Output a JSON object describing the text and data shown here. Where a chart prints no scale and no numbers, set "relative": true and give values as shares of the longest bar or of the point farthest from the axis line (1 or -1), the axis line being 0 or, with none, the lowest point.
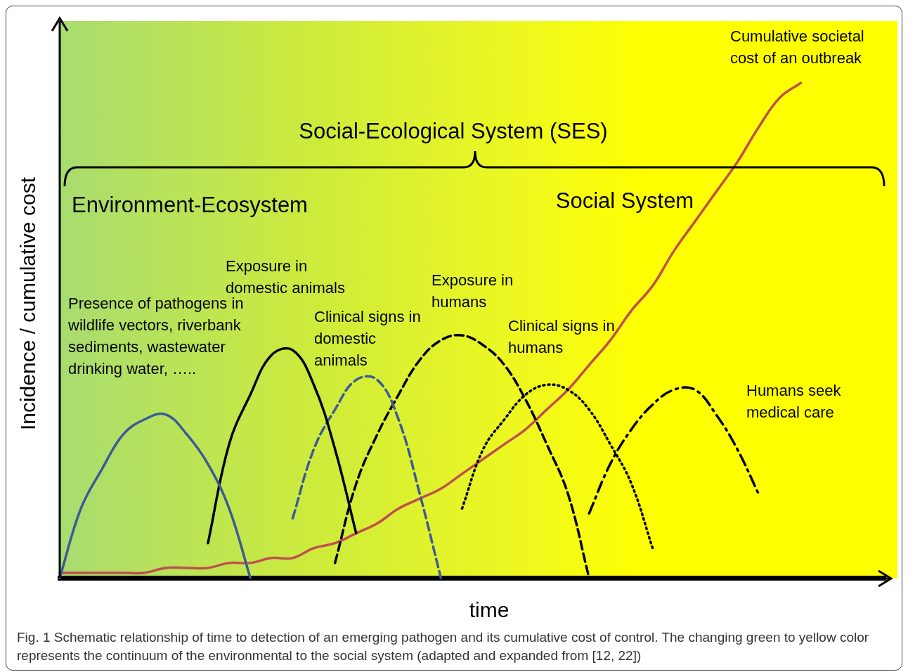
{
  "chart_data": {
    "type": "line",
    "relative": true,
    "xlabel": "time",
    "ylabel": "Incidence / cumulative cost",
    "grid": false,
    "legend": false,
    "categories": [
      null,
      null,
      null,
      null,
      null,
      null,
      null,
      null,
      null,
      null,
      null,
      null,
      null,
      null,
      null,
      null,
      null,
      null,
      null,
      null,
      null,
      null,
      null,
      null,
      null,
      null,
      null,
      null,
      null,
      null,
      null,
      null,
      null,
      null,
      null,
      null,
      null,
      null,
      null,
      null
    ],
    "series": [
      {
        "color": "#3d5a99",
        "line_style": "solid",
        "values": [
          0,
          0.14,
          0.22,
          0.29,
          0.32,
          0.33,
          0.29,
          0.23,
          0.14,
          0,
          null,
          null,
          null,
          null,
          null,
          null,
          null,
          null,
          null,
          null,
          null,
          null,
          null,
          null,
          null,
          null,
          null,
          null,
          null,
          null,
          null,
          null,
          null,
          null,
          null,
          null,
          null,
          null,
          null,
          null
        ]
      },
      {
        "color": "#000000",
        "line_style": "solid",
        "values": [
          null,
          null,
          null,
          null,
          null,
          null,
          null,
          0.07,
          0.27,
          0.37,
          0.45,
          0.46,
          0.39,
          0.26,
          0.09,
          null,
          null,
          null,
          null,
          null,
          null,
          null,
          null,
          null,
          null,
          null,
          null,
          null,
          null,
          null,
          null,
          null,
          null,
          null,
          null,
          null,
          null,
          null,
          null,
          null
        ]
      },
      {
        "color": "#3d5a99",
        "line_style": "dashed",
        "values": [
          null,
          null,
          null,
          null,
          null,
          null,
          null,
          null,
          null,
          null,
          null,
          0.12,
          0.26,
          0.34,
          0.4,
          0.4,
          0.32,
          0.17,
          0,
          null,
          null,
          null,
          null,
          null,
          null,
          null,
          null,
          null,
          null,
          null,
          null,
          null,
          null,
          null,
          null,
          null,
          null,
          null,
          null,
          null
        ]
      },
      {
        "color": "#000000",
        "line_style": "dashed",
        "values": [
          null,
          null,
          null,
          null,
          null,
          null,
          null,
          null,
          null,
          null,
          null,
          null,
          null,
          0.03,
          0.19,
          0.29,
          0.37,
          0.44,
          0.48,
          0.49,
          0.47,
          0.43,
          0.36,
          0.27,
          0.17,
          0,
          null,
          null,
          null,
          null,
          null,
          null,
          null,
          null,
          null,
          null,
          null,
          null,
          null,
          null
        ]
      },
      {
        "color": "#000000",
        "line_style": "dotted",
        "values": [
          null,
          null,
          null,
          null,
          null,
          null,
          null,
          null,
          null,
          null,
          null,
          null,
          null,
          null,
          null,
          null,
          null,
          null,
          null,
          0.14,
          0.26,
          0.32,
          0.37,
          0.39,
          0.38,
          0.34,
          0.27,
          0.19,
          0.06,
          null,
          null,
          null,
          null,
          null,
          null,
          null,
          null,
          null,
          null,
          null
        ]
      },
      {
        "color": "#000000",
        "line_style": "dashdot",
        "values": [
          null,
          null,
          null,
          null,
          null,
          null,
          null,
          null,
          null,
          null,
          null,
          null,
          null,
          null,
          null,
          null,
          null,
          null,
          null,
          null,
          null,
          null,
          null,
          null,
          null,
          0.13,
          0.23,
          0.3,
          0.35,
          0.38,
          0.38,
          0.33,
          0.26,
          0.17,
          null,
          null,
          null,
          null,
          null,
          null
        ]
      },
      {
        "color": "#c0504d",
        "line_style": "solid",
        "values": [
          0.01,
          0.01,
          0.01,
          0.01,
          0.01,
          0.02,
          0.02,
          0.02,
          0.03,
          0.03,
          0.04,
          0.04,
          0.06,
          0.07,
          0.09,
          0.11,
          0.14,
          0.16,
          0.18,
          0.21,
          0.24,
          0.27,
          0.3,
          0.34,
          0.38,
          0.43,
          0.48,
          0.54,
          0.59,
          0.66,
          0.72,
          0.78,
          0.84,
          0.91,
          0.97,
          1.0,
          null,
          null,
          null,
          null
        ]
      }
    ],
    "annotations": [
      "Social-Ecological System (SES)",
      "Environment-Ecosystem",
      "Social System",
      "Presence of pathogens in wildlife vectors, riverbank sediments, wastewater drinking water, …..",
      "Exposure in domestic animals",
      "Clinical signs in  domestic animals",
      "Exposure in humans",
      "Clinical signs in humans",
      "Humans seek medical care",
      "Cumulative societal cost of an outbreak",
      "Fig. 1 Schematic relationship of time to detection of an emerging pathogen and its cumulative cost of control. The changing green to yellow color represents the continuum of the environmental to the social system (adapted and expanded from [12, 22])"
    ]
  }
}
